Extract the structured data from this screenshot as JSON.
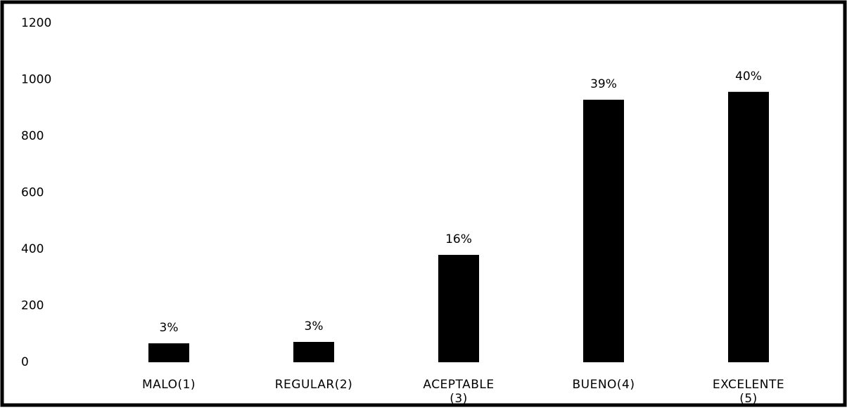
{
  "chart_data": {
    "type": "bar",
    "categories": [
      "MALO(1)",
      "REGULAR(2)",
      "ACEPTABLE (3)",
      "BUENO(4)",
      "EXCELENTE (5)"
    ],
    "values": [
      67,
      72,
      380,
      929,
      957
    ],
    "value_labels": [
      "3%",
      "3%",
      "16%",
      "39%",
      "40%"
    ],
    "color": "#000000",
    "ylim": [
      0,
      1200
    ],
    "yticks": [
      0,
      200,
      400,
      600,
      800,
      1000,
      1200
    ],
    "grid": false
  }
}
